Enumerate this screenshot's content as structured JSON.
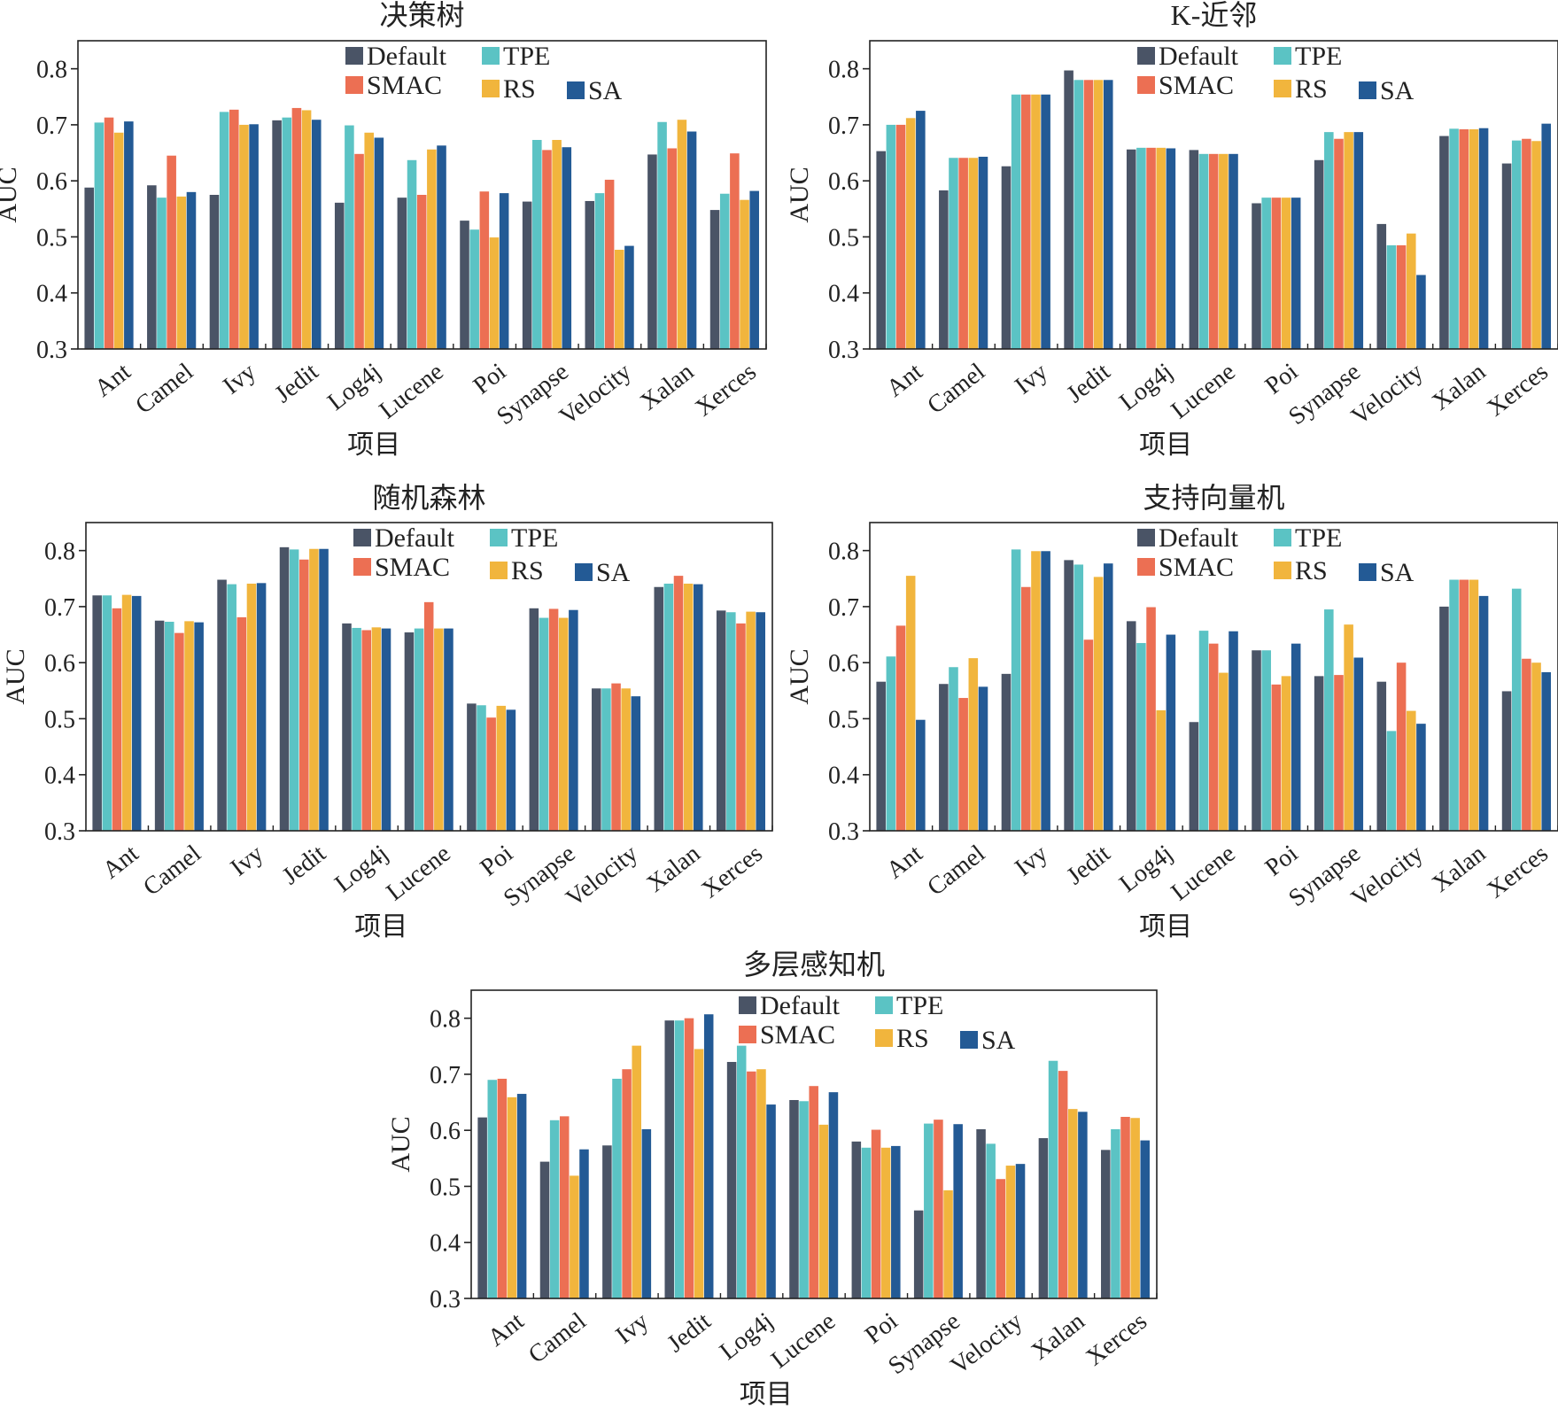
{
  "colors": {
    "Default": "#4a5466",
    "TPE": "#5bc3c4",
    "SMAC": "#ec6f53",
    "RS": "#f1b53d",
    "SA": "#235a95"
  },
  "chart_data": [
    {
      "type": "bar",
      "title": "决策树",
      "xlabel": "项目",
      "ylabel": "AUC",
      "ylim": [
        0.3,
        0.85
      ],
      "yticks": [
        "0.3",
        "0.4",
        "0.5",
        "0.6",
        "0.7",
        "0.8"
      ],
      "legend": [
        "Default",
        "TPE",
        "SMAC",
        "RS",
        "SA"
      ],
      "categories": [
        "Ant",
        "Camel",
        "Ivy",
        "Jedit",
        "Log4j",
        "Lucene",
        "Poi",
        "Synapse",
        "Velocity",
        "Xalan",
        "Xerces"
      ],
      "series": [
        {
          "name": "Default",
          "values": [
            0.588,
            0.592,
            0.575,
            0.708,
            0.561,
            0.57,
            0.529,
            0.563,
            0.564,
            0.647,
            0.548
          ]
        },
        {
          "name": "TPE",
          "values": [
            0.704,
            0.57,
            0.723,
            0.713,
            0.699,
            0.637,
            0.513,
            0.673,
            0.578,
            0.705,
            0.577
          ]
        },
        {
          "name": "SMAC",
          "values": [
            0.713,
            0.645,
            0.727,
            0.73,
            0.648,
            0.575,
            0.581,
            0.655,
            0.602,
            0.658,
            0.649
          ]
        },
        {
          "name": "RS",
          "values": [
            0.686,
            0.572,
            0.7,
            0.726,
            0.686,
            0.656,
            0.499,
            0.673,
            0.477,
            0.709,
            0.566
          ]
        },
        {
          "name": "SA",
          "values": [
            0.706,
            0.58,
            0.701,
            0.709,
            0.677,
            0.663,
            0.578,
            0.66,
            0.484,
            0.688,
            0.582
          ]
        }
      ]
    },
    {
      "type": "bar",
      "title": "K-近邻",
      "xlabel": "项目",
      "ylabel": "AUC",
      "ylim": [
        0.3,
        0.85
      ],
      "yticks": [
        "0.3",
        "0.4",
        "0.5",
        "0.6",
        "0.7",
        "0.8"
      ],
      "legend": [
        "Default",
        "TPE",
        "SMAC",
        "RS",
        "SA"
      ],
      "categories": [
        "Ant",
        "Camel",
        "Ivy",
        "Jedit",
        "Log4j",
        "Lucene",
        "Poi",
        "Synapse",
        "Velocity",
        "Xalan",
        "Xerces"
      ],
      "series": [
        {
          "name": "Default",
          "values": [
            0.653,
            0.583,
            0.626,
            0.797,
            0.656,
            0.655,
            0.56,
            0.637,
            0.523,
            0.68,
            0.631
          ]
        },
        {
          "name": "TPE",
          "values": [
            0.7,
            0.641,
            0.754,
            0.78,
            0.659,
            0.648,
            0.57,
            0.687,
            0.485,
            0.693,
            0.672
          ]
        },
        {
          "name": "SMAC",
          "values": [
            0.7,
            0.641,
            0.754,
            0.78,
            0.659,
            0.648,
            0.57,
            0.675,
            0.485,
            0.692,
            0.675
          ]
        },
        {
          "name": "RS",
          "values": [
            0.712,
            0.641,
            0.754,
            0.78,
            0.659,
            0.648,
            0.57,
            0.687,
            0.506,
            0.692,
            0.671
          ]
        },
        {
          "name": "SA",
          "values": [
            0.725,
            0.643,
            0.754,
            0.78,
            0.658,
            0.648,
            0.57,
            0.687,
            0.432,
            0.694,
            0.702
          ]
        }
      ]
    },
    {
      "type": "bar",
      "title": "随机森林",
      "xlabel": "项目",
      "ylabel": "AUC",
      "ylim": [
        0.3,
        0.85
      ],
      "yticks": [
        "0.3",
        "0.4",
        "0.5",
        "0.6",
        "0.7",
        "0.8"
      ],
      "legend": [
        "Default",
        "TPE",
        "SMAC",
        "RS",
        "SA"
      ],
      "categories": [
        "Ant",
        "Camel",
        "Ivy",
        "Jedit",
        "Log4j",
        "Lucene",
        "Poi",
        "Synapse",
        "Velocity",
        "Xalan",
        "Xerces"
      ],
      "series": [
        {
          "name": "Default",
          "values": [
            0.72,
            0.675,
            0.748,
            0.806,
            0.67,
            0.654,
            0.527,
            0.697,
            0.554,
            0.735,
            0.693
          ]
        },
        {
          "name": "TPE",
          "values": [
            0.72,
            0.673,
            0.74,
            0.802,
            0.662,
            0.661,
            0.524,
            0.68,
            0.554,
            0.741,
            0.69
          ]
        },
        {
          "name": "SMAC",
          "values": [
            0.697,
            0.653,
            0.681,
            0.784,
            0.658,
            0.708,
            0.502,
            0.696,
            0.563,
            0.755,
            0.67
          ]
        },
        {
          "name": "RS",
          "values": [
            0.721,
            0.674,
            0.741,
            0.803,
            0.663,
            0.661,
            0.523,
            0.68,
            0.554,
            0.741,
            0.691
          ]
        },
        {
          "name": "SA",
          "values": [
            0.719,
            0.672,
            0.742,
            0.803,
            0.661,
            0.661,
            0.516,
            0.694,
            0.54,
            0.74,
            0.69
          ]
        }
      ]
    },
    {
      "type": "bar",
      "title": "支持向量机",
      "xlabel": "项目",
      "ylabel": "AUC",
      "ylim": [
        0.3,
        0.85
      ],
      "yticks": [
        "0.3",
        "0.4",
        "0.5",
        "0.6",
        "0.7",
        "0.8"
      ],
      "legend": [
        "Default",
        "TPE",
        "SMAC",
        "RS",
        "SA"
      ],
      "categories": [
        "Ant",
        "Camel",
        "Ivy",
        "Jedit",
        "Log4j",
        "Lucene",
        "Poi",
        "Synapse",
        "Velocity",
        "Xalan",
        "Xerces"
      ],
      "series": [
        {
          "name": "Default",
          "values": [
            0.566,
            0.562,
            0.58,
            0.783,
            0.674,
            0.494,
            0.622,
            0.576,
            0.566,
            0.7,
            0.549
          ]
        },
        {
          "name": "TPE",
          "values": [
            0.611,
            0.592,
            0.802,
            0.775,
            0.635,
            0.657,
            0.622,
            0.695,
            0.478,
            0.748,
            0.732
          ]
        },
        {
          "name": "SMAC",
          "values": [
            0.666,
            0.537,
            0.735,
            0.641,
            0.699,
            0.634,
            0.561,
            0.578,
            0.6,
            0.748,
            0.607
          ]
        },
        {
          "name": "RS",
          "values": [
            0.755,
            0.608,
            0.799,
            0.753,
            0.515,
            0.582,
            0.576,
            0.668,
            0.514,
            0.748,
            0.6
          ]
        },
        {
          "name": "SA",
          "values": [
            0.498,
            0.557,
            0.799,
            0.777,
            0.65,
            0.656,
            0.634,
            0.609,
            0.491,
            0.719,
            0.583
          ]
        }
      ]
    },
    {
      "type": "bar",
      "title": "多层感知机",
      "xlabel": "项目",
      "ylabel": "AUC",
      "ylim": [
        0.3,
        0.85
      ],
      "yticks": [
        "0.3",
        "0.4",
        "0.5",
        "0.6",
        "0.7",
        "0.8"
      ],
      "legend": [
        "Default",
        "TPE",
        "SMAC",
        "RS",
        "SA"
      ],
      "categories": [
        "Ant",
        "Camel",
        "Ivy",
        "Jedit",
        "Log4j",
        "Lucene",
        "Poi",
        "Synapse",
        "Velocity",
        "Xalan",
        "Xerces"
      ],
      "series": [
        {
          "name": "Default",
          "values": [
            0.623,
            0.544,
            0.573,
            0.796,
            0.722,
            0.654,
            0.58,
            0.457,
            0.602,
            0.586,
            0.565
          ]
        },
        {
          "name": "TPE",
          "values": [
            0.69,
            0.618,
            0.692,
            0.796,
            0.751,
            0.652,
            0.569,
            0.612,
            0.576,
            0.724,
            0.602
          ]
        },
        {
          "name": "SMAC",
          "values": [
            0.692,
            0.625,
            0.709,
            0.8,
            0.705,
            0.679,
            0.601,
            0.619,
            0.513,
            0.706,
            0.624
          ]
        },
        {
          "name": "RS",
          "values": [
            0.659,
            0.519,
            0.751,
            0.745,
            0.709,
            0.61,
            0.569,
            0.493,
            0.537,
            0.638,
            0.622
          ]
        },
        {
          "name": "SA",
          "values": [
            0.665,
            0.566,
            0.602,
            0.807,
            0.646,
            0.668,
            0.572,
            0.611,
            0.54,
            0.633,
            0.582
          ]
        }
      ]
    }
  ]
}
